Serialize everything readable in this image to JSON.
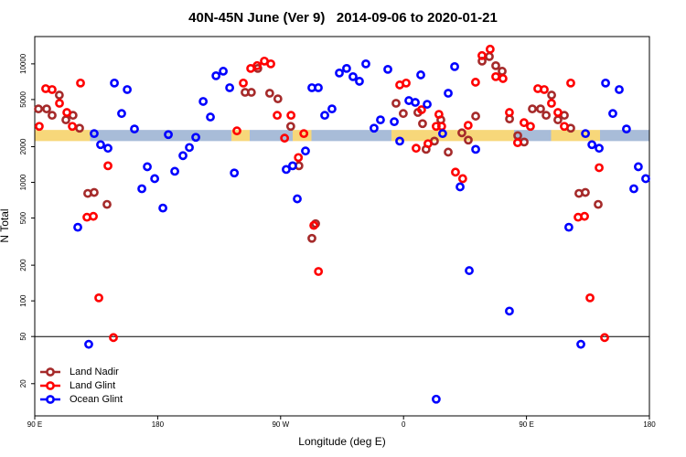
{
  "chart_data": {
    "type": "scatter",
    "title": "40N-45N June (Ver 9)   2014-09-06 to 2020-01-21",
    "x_label": "Longitude (deg E)",
    "y_label": "N Total",
    "xlim": [
      90,
      540
    ],
    "xticks": [
      {
        "value": 90,
        "label": "90 E"
      },
      180,
      {
        "value": 270,
        "label": "90 W"
      },
      {
        "value": 360,
        "label": "0"
      },
      {
        "value": 450,
        "label": "90 E"
      },
      {
        "value": 540,
        "label": "180"
      }
    ],
    "ylim": [
      10.7,
      17000
    ],
    "log_y": true,
    "yticks": [
      20,
      50,
      100,
      200,
      500,
      1000,
      2000,
      5000,
      10000
    ],
    "hline": 50,
    "band": [
      2230,
      2770
    ],
    "legend": "bottom-left",
    "series": [
      {
        "name": "Land Nadir",
        "color": "#a52a2a",
        "x": [
          92.7,
          98.7,
          102.7,
          108,
          112.8,
          118,
          122.8,
          128.8,
          133.5,
          142.9,
          244,
          248.6,
          253.3,
          262,
          268,
          277.4,
          283.4,
          292.9,
          295.6,
          354.5,
          359.8,
          370.5,
          373.9,
          376.5,
          382.6,
          387.3,
          392.7,
          402.7,
          407.4,
          412.8,
          417.5,
          422.8,
          427.5,
          432.2,
          437.6,
          443.6,
          448.3,
          454.3,
          460.3,
          464.4,
          468.4,
          473,
          477.7,
          482.4,
          488.4,
          493.1,
          502.5
        ],
        "values": [
          4170,
          4170,
          3680,
          5450,
          3370,
          3680,
          2865,
          807,
          822,
          652,
          5750,
          5750,
          9150,
          5650,
          5070,
          2970,
          1380,
          337,
          448,
          4650,
          3810,
          3890,
          3130,
          1900,
          2230,
          3370,
          1800,
          2620,
          2275,
          3620,
          10550,
          11530,
          9650,
          8670,
          3430,
          2480,
          2190,
          4170,
          4170,
          3680,
          5450,
          3370,
          3680,
          2865,
          807,
          822,
          652
        ]
      },
      {
        "name": "Land Glint",
        "color": "#ff0000",
        "x": [
          93.3,
          98,
          102.7,
          108.1,
          113.5,
          117.5,
          123.5,
          128.2,
          132.9,
          136.9,
          143.6,
          147.6,
          238,
          242.7,
          248.1,
          252.8,
          258.1,
          262.8,
          267.5,
          272.9,
          277.6,
          283,
          287,
          294.3,
          297.7,
          357.2,
          361.9,
          369.2,
          373.2,
          377.9,
          383.9,
          385.9,
          387.9,
          398,
          403.3,
          407.3,
          412.7,
          417.4,
          423.4,
          427.5,
          432.8,
          437.5,
          443.5,
          448.2,
          452.9,
          458.3,
          463,
          468.3,
          473,
          477.7,
          482.4,
          487.8,
          492.5,
          496.5,
          503.2,
          507.2
        ],
        "values": [
          2970,
          6180,
          6070,
          4650,
          3890,
          2970,
          6890,
          508,
          517,
          106,
          1380,
          49,
          2720,
          6890,
          9150,
          9660,
          10550,
          10000,
          3680,
          2360,
          3680,
          1620,
          2580,
          433,
          177,
          6640,
          6890,
          1940,
          4100,
          2120,
          2970,
          3750,
          2970,
          1220,
          1075,
          3030,
          7000,
          11750,
          13300,
          7800,
          7520,
          3890,
          2160,
          3190,
          2970,
          6180,
          6070,
          4650,
          3890,
          2970,
          6890,
          508,
          517,
          106,
          1330,
          49
        ]
      },
      {
        "name": "Ocean Glint",
        "color": "#0000ff",
        "x": [
          121.5,
          129.5,
          133.5,
          138.2,
          143.6,
          148.3,
          153.6,
          157.7,
          163,
          168.4,
          172.4,
          177.8,
          183.8,
          187.8,
          192.5,
          198.5,
          203.2,
          207.9,
          213.3,
          218.6,
          222.7,
          228,
          232.7,
          236.1,
          274.1,
          278.8,
          282.2,
          288.2,
          292.9,
          297.6,
          302.3,
          307.6,
          313,
          318.3,
          323,
          327.7,
          332.4,
          338.4,
          343.1,
          348.5,
          353.2,
          357.2,
          363.9,
          368.6,
          372.6,
          377.3,
          383.9,
          388.6,
          392.7,
          397.4,
          401.4,
          408.1,
          412.8,
          437.5,
          481,
          489.8,
          493.2,
          497.9,
          503.2,
          507.9,
          513.2,
          517.9,
          523.2,
          528.6,
          531.9,
          537.3
        ],
        "values": [
          418,
          43,
          2580,
          2080,
          1940,
          6890,
          3810,
          6070,
          2820,
          883,
          1355,
          1075,
          607,
          2530,
          1240,
          1680,
          1970,
          2400,
          4820,
          3560,
          7940,
          8670,
          6290,
          1200,
          1285,
          1380,
          726,
          1840,
          6290,
          6290,
          3680,
          4170,
          8370,
          9150,
          7800,
          7130,
          10000,
          2865,
          3370,
          8990,
          3250,
          2230,
          4900,
          4730,
          8070,
          4560,
          14.8,
          2580,
          5650,
          9480,
          916,
          180,
          1900,
          82,
          418,
          43,
          2580,
          2080,
          1940,
          6890,
          3810,
          6070,
          2820,
          883,
          1355,
          1075
        ]
      }
    ]
  }
}
